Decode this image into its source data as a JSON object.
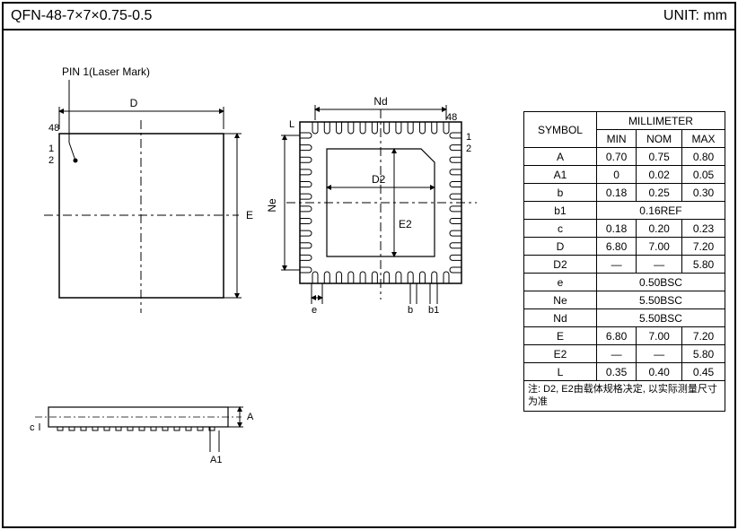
{
  "header": {
    "title": "QFN-48-7×7×0.75-0.5",
    "unit": "UNIT: mm"
  },
  "pin1_label": "PIN 1(Laser Mark)",
  "topview": {
    "label_48": "48",
    "label_1": "1",
    "label_2": "2",
    "dim_D": "D",
    "dim_E": "E"
  },
  "bottomview": {
    "label_48": "48",
    "label_1": "1",
    "label_2": "2",
    "dim_Nd": "Nd",
    "dim_Ne": "Ne",
    "dim_D2": "D2",
    "dim_E2": "E2",
    "dim_L": "L",
    "dim_e": "e",
    "dim_b": "b",
    "dim_b1": "b1"
  },
  "sideview": {
    "dim_A": "A",
    "dim_A1": "A1",
    "dim_c": "c"
  },
  "table": {
    "header_symbol": "SYMBOL",
    "header_mm": "MILLIMETER",
    "header_min": "MIN",
    "header_nom": "NOM",
    "header_max": "MAX",
    "rows": [
      {
        "sym": "A",
        "min": "0.70",
        "nom": "0.75",
        "max": "0.80"
      },
      {
        "sym": "A1",
        "min": "0",
        "nom": "0.02",
        "max": "0.05"
      },
      {
        "sym": "b",
        "min": "0.18",
        "nom": "0.25",
        "max": "0.30"
      },
      {
        "sym": "b1",
        "span": "0.16REF"
      },
      {
        "sym": "c",
        "min": "0.18",
        "nom": "0.20",
        "max": "0.23"
      },
      {
        "sym": "D",
        "min": "6.80",
        "nom": "7.00",
        "max": "7.20"
      },
      {
        "sym": "D2",
        "min": "—",
        "nom": "—",
        "max": "5.80"
      },
      {
        "sym": "e",
        "span": "0.50BSC"
      },
      {
        "sym": "Ne",
        "span": "5.50BSC"
      },
      {
        "sym": "Nd",
        "span": "5.50BSC"
      },
      {
        "sym": "E",
        "min": "6.80",
        "nom": "7.00",
        "max": "7.20"
      },
      {
        "sym": "E2",
        "min": "—",
        "nom": "—",
        "max": "5.80"
      },
      {
        "sym": "L",
        "min": "0.35",
        "nom": "0.40",
        "max": "0.45"
      }
    ],
    "note": "注: D2, E2由载体规格决定, 以实际测量尺寸为准"
  },
  "style": {
    "stroke": "#000000",
    "stroke_width": 1.2,
    "dash": "6,3,2,3",
    "font_size_label": 12,
    "font_size_small": 10,
    "pin_count_per_side": 12
  }
}
